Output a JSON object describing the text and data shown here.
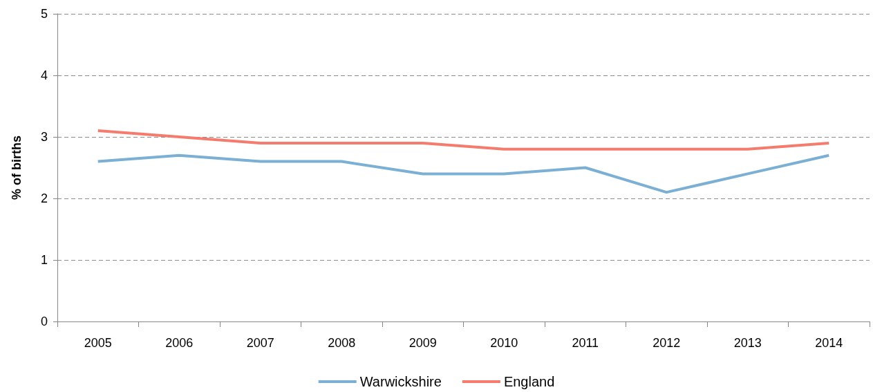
{
  "chart_data": {
    "type": "line",
    "ylabel": "% of births",
    "categories": [
      "2005",
      "2006",
      "2007",
      "2008",
      "2009",
      "2010",
      "2011",
      "2012",
      "2013",
      "2014"
    ],
    "series": [
      {
        "name": "Warwickshire",
        "color": "#7bafd4",
        "values": [
          2.6,
          2.7,
          2.6,
          2.6,
          2.4,
          2.4,
          2.5,
          2.1,
          2.4,
          2.7
        ]
      },
      {
        "name": "England",
        "color": "#f47c6f",
        "values": [
          3.1,
          3.0,
          2.9,
          2.9,
          2.9,
          2.8,
          2.8,
          2.8,
          2.8,
          2.9
        ]
      }
    ],
    "ylim": [
      0,
      5
    ],
    "yticks": [
      0,
      1,
      2,
      3,
      4,
      5
    ],
    "grid": "y",
    "legend": "bottom",
    "marker": "none",
    "line_style": "solid"
  }
}
